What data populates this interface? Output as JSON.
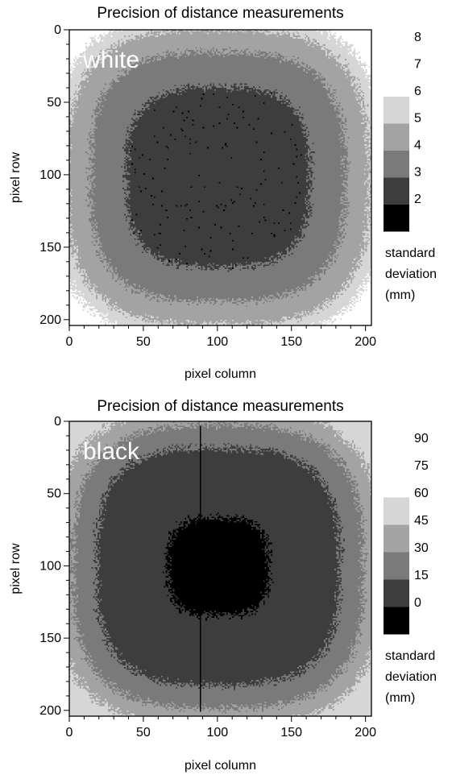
{
  "chart_data": [
    {
      "type": "heatmap",
      "title": "Precision of distance measurements",
      "overlay_label": "white",
      "xlabel": "pixel column",
      "ylabel": "pixel row",
      "xlim": [
        0,
        204
      ],
      "ylim": [
        0,
        204
      ],
      "y_inverted": true,
      "xticks": [
        "0",
        "50",
        "100",
        "150",
        "200"
      ],
      "yticks": [
        "0",
        "50",
        "100",
        "150",
        "200"
      ],
      "colorbar": {
        "levels": [
          2,
          3,
          4,
          5,
          6,
          7,
          8
        ],
        "labels": [
          "8",
          "7",
          "6",
          "5",
          "4",
          "3",
          "2"
        ],
        "colors": [
          "#000000",
          "#3d3d3d",
          "#7a7a7a",
          "#a3a3a3",
          "#d6d6d6",
          "#ffffff"
        ],
        "title_lines": [
          "standard",
          "deviation",
          "(mm)"
        ]
      },
      "field": {
        "center_x": 100,
        "center_y": 101,
        "core_value": 3.7,
        "bands": [
          {
            "value": 3.7,
            "max_radius": 0.62
          },
          {
            "value": 4.5,
            "max_radius": 0.86
          },
          {
            "value": 5.5,
            "max_radius": 1.02
          },
          {
            "value": 6.5,
            "max_radius": 1.12
          },
          {
            "value": 7.5,
            "max_radius": 9
          }
        ],
        "speckle_dark_value": 2.5,
        "speckle_dark_density": 0.012
      }
    },
    {
      "type": "heatmap",
      "title": "Precision of distance measurements",
      "overlay_label": "black",
      "xlabel": "pixel column",
      "ylabel": "pixel row",
      "xlim": [
        0,
        204
      ],
      "ylim": [
        0,
        204
      ],
      "y_inverted": true,
      "xticks": [
        "0",
        "50",
        "100",
        "150",
        "200"
      ],
      "yticks": [
        "0",
        "50",
        "100",
        "150",
        "200"
      ],
      "colorbar": {
        "levels": [
          0,
          15,
          30,
          45,
          60,
          75,
          90
        ],
        "labels": [
          "90",
          "75",
          "60",
          "45",
          "30",
          "15",
          "0"
        ],
        "colors": [
          "#000000",
          "#3d3d3d",
          "#7a7a7a",
          "#a3a3a3",
          "#d6d6d6",
          "#ffffff"
        ],
        "title_lines": [
          "standard",
          "deviation",
          "(mm)"
        ]
      },
      "field": {
        "center_x": 100,
        "center_y": 100,
        "core_value": 8,
        "bands": [
          {
            "value": 8,
            "max_radius": 0.34
          },
          {
            "value": 22,
            "max_radius": 0.82
          },
          {
            "value": 38,
            "max_radius": 0.98
          },
          {
            "value": 52,
            "max_radius": 1.1
          },
          {
            "value": 68,
            "max_radius": 9
          }
        ],
        "vertical_line_column": 88,
        "vertical_line_value": 8
      }
    }
  ]
}
